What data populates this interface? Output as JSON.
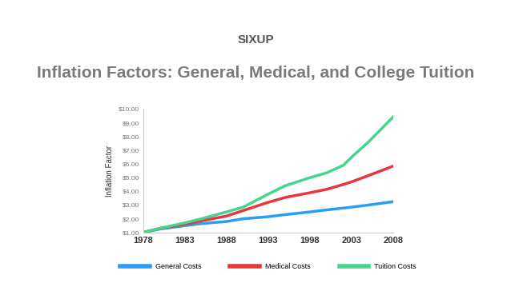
{
  "chart_data": {
    "type": "line",
    "subtitle": "SIXUP",
    "title": "Inflation Factors: General, Medical, and College Tuition",
    "y_label": "Inflation Factor",
    "x": [
      1978,
      1980,
      1983,
      1985,
      1988,
      1990,
      1993,
      1995,
      1998,
      2000,
      2002,
      2003,
      2005,
      2008
    ],
    "series": [
      {
        "name": "General Costs",
        "color": "#2a9df4",
        "values": [
          1.0,
          1.25,
          1.5,
          1.65,
          1.8,
          2.0,
          2.15,
          2.3,
          2.5,
          2.65,
          2.78,
          2.85,
          3.0,
          3.25
        ]
      },
      {
        "name": "Medical Costs",
        "color": "#e8363c",
        "values": [
          1.0,
          1.3,
          1.6,
          1.85,
          2.2,
          2.6,
          3.2,
          3.55,
          3.9,
          4.15,
          4.5,
          4.7,
          5.15,
          5.85
        ]
      },
      {
        "name": "Tuition Costs",
        "color": "#45d58c",
        "values": [
          1.0,
          1.3,
          1.7,
          2.0,
          2.5,
          2.85,
          3.8,
          4.4,
          5.0,
          5.35,
          5.9,
          6.5,
          7.6,
          9.45
        ]
      }
    ],
    "xlim": [
      1978,
      2008
    ],
    "xticks": [
      1978,
      1983,
      1988,
      1993,
      1998,
      2003,
      2008
    ],
    "ylim": [
      1,
      10
    ],
    "yticks": [
      {
        "value": 1,
        "label": "$1.00"
      },
      {
        "value": 2,
        "label": "$2.00"
      },
      {
        "value": 3,
        "label": "$3.00"
      },
      {
        "value": 4,
        "label": "$4.00"
      },
      {
        "value": 5,
        "label": "$5.00"
      },
      {
        "value": 6,
        "label": "$6.00"
      },
      {
        "value": 7,
        "label": "$7.00"
      },
      {
        "value": 8,
        "label": "$8.00"
      },
      {
        "value": 9,
        "label": "$9.00"
      },
      {
        "value": 10,
        "label": "$10.00"
      }
    ],
    "grid": false,
    "legend": "lower center"
  }
}
